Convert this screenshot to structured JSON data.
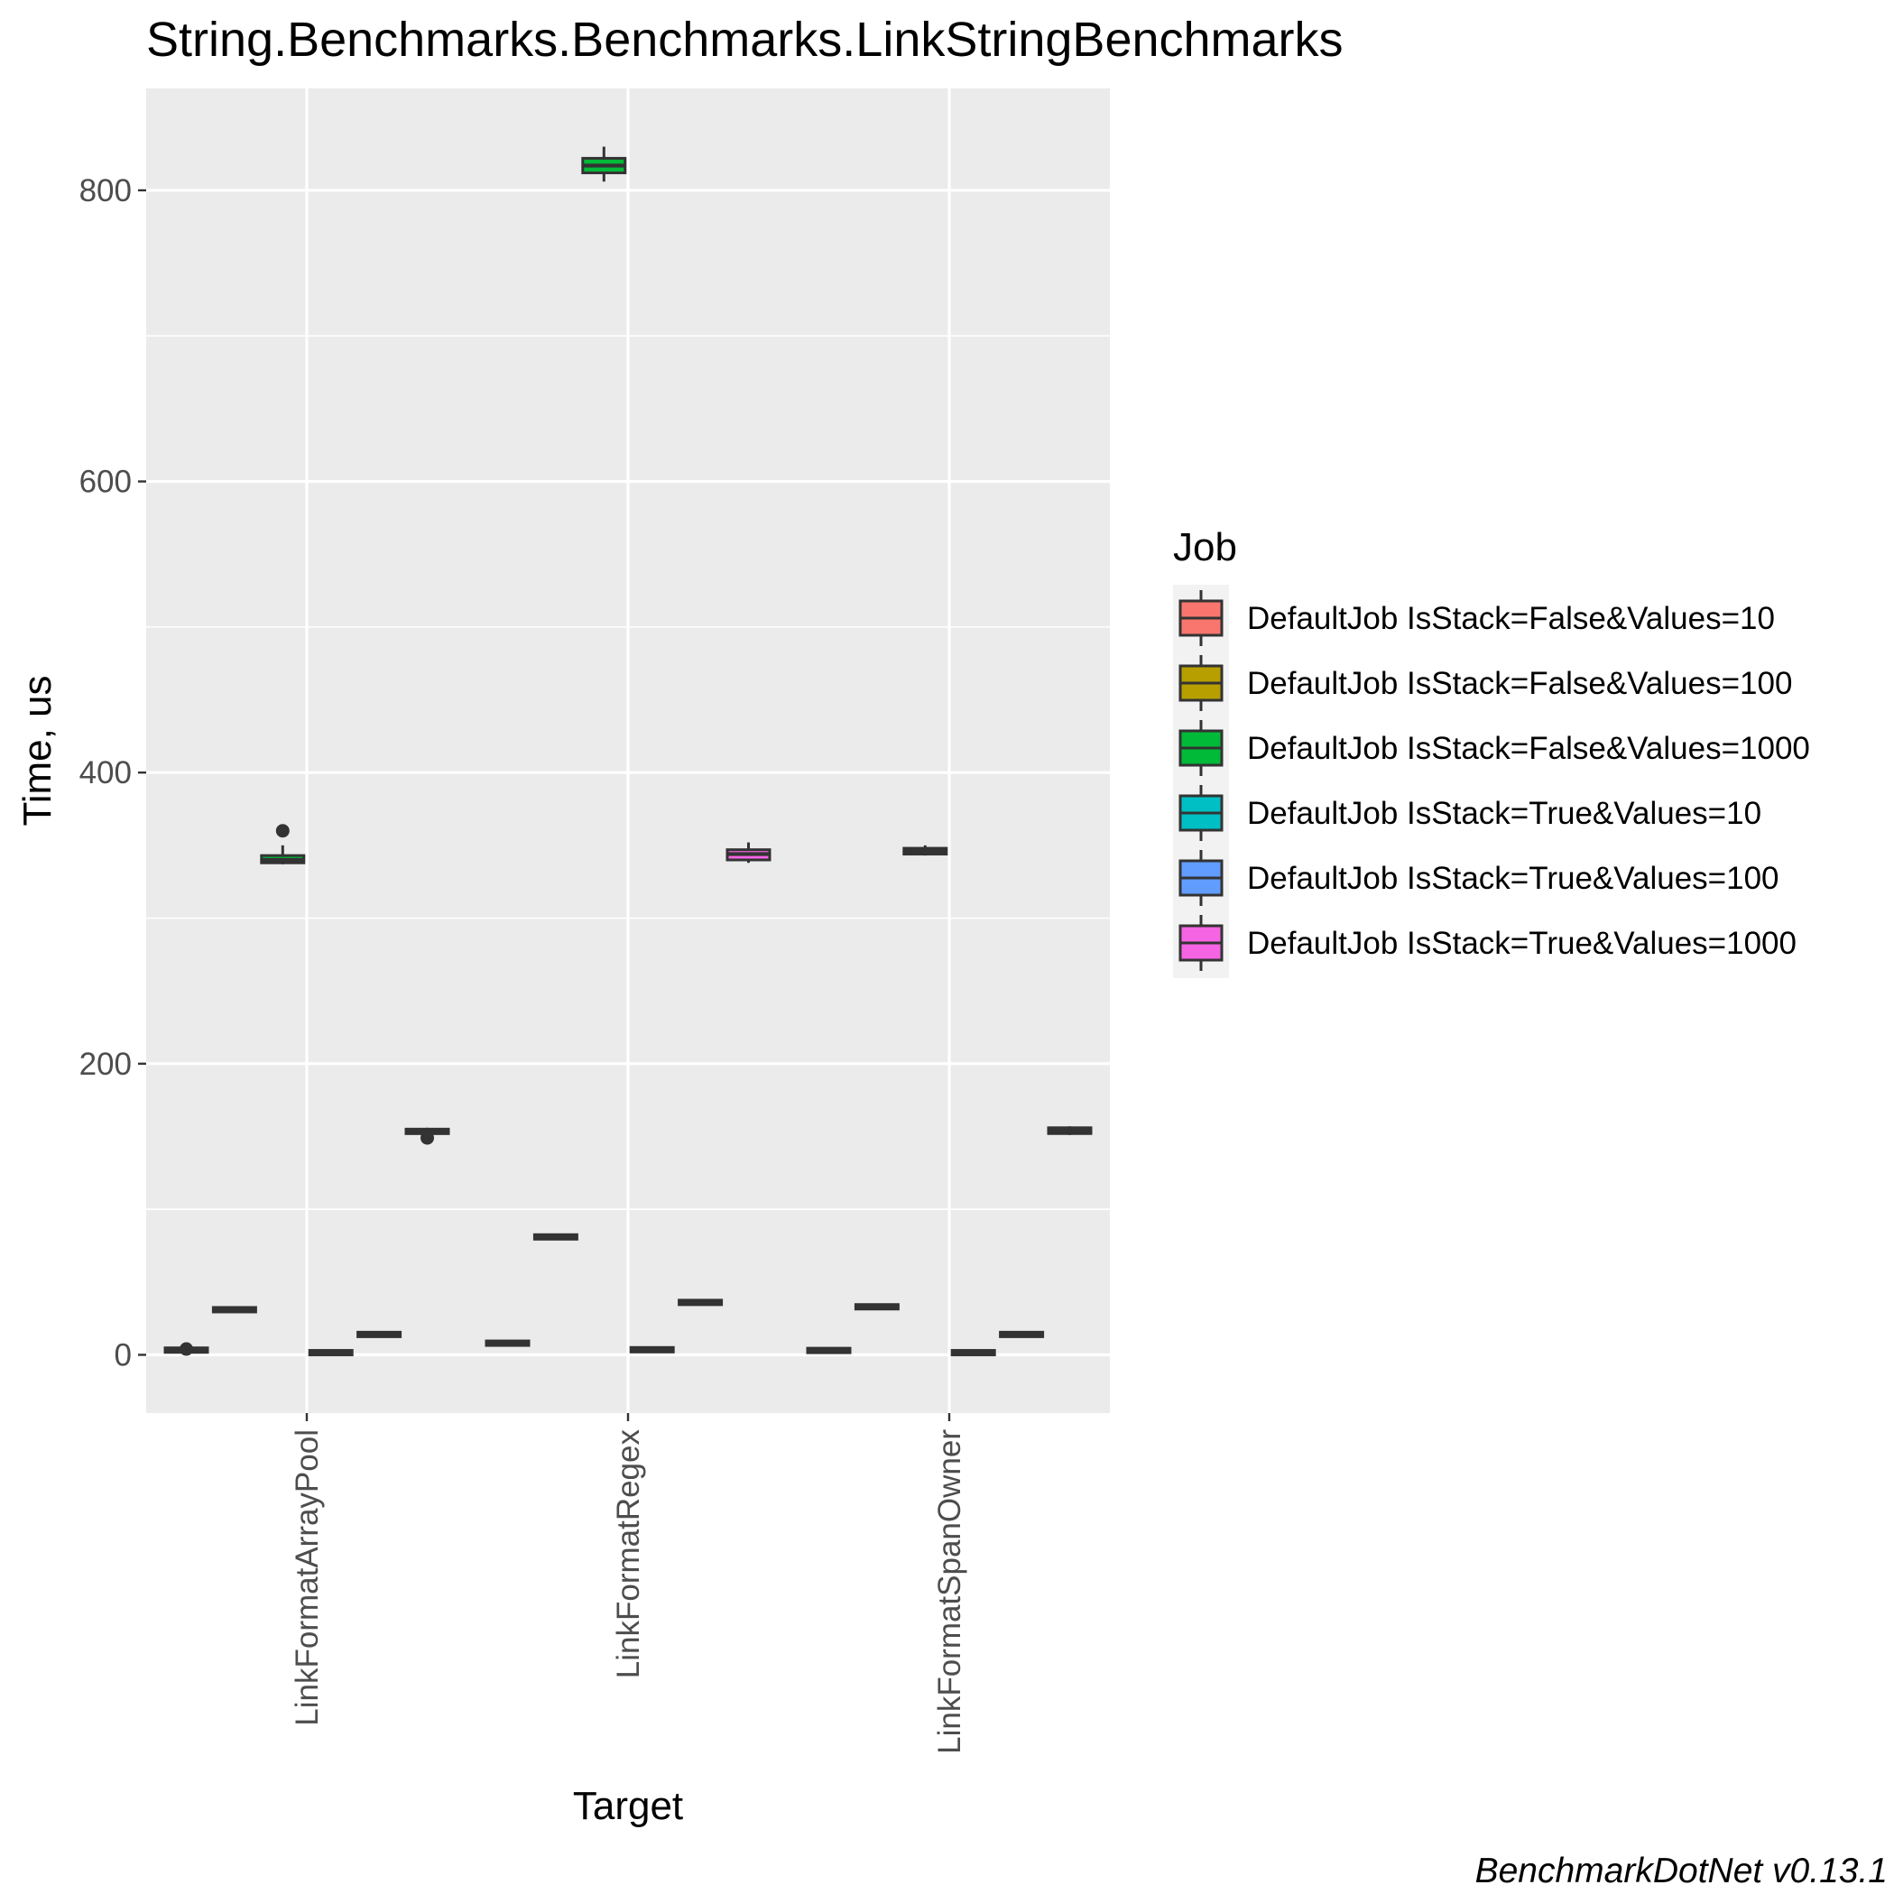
{
  "chart_data": {
    "type": "boxplot",
    "title": "String.Benchmarks.Benchmarks.LinkStringBenchmarks",
    "xlabel": "Target",
    "ylabel": "Time, us",
    "caption": "BenchmarkDotNet v0.13.1",
    "categories": [
      "LinkFormatArrayPool",
      "LinkFormatRegex",
      "LinkFormatSpanOwner"
    ],
    "ylim": [
      -40,
      870
    ],
    "yticks": [
      0,
      200,
      400,
      600,
      800
    ],
    "grid": true,
    "legend": {
      "title": "Job",
      "position": "right"
    },
    "series": [
      {
        "name": "DefaultJob IsStack=False&Values=10",
        "color": "#F8766D",
        "boxes": [
          {
            "min": 2,
            "q1": 2.5,
            "median": 3,
            "q3": 4,
            "max": 5,
            "outliers": [
              4
            ]
          },
          {
            "min": 7,
            "q1": 7.5,
            "median": 8,
            "q3": 8.5,
            "max": 9,
            "outliers": []
          },
          {
            "min": 2,
            "q1": 2.5,
            "median": 3,
            "q3": 3.5,
            "max": 4,
            "outliers": []
          }
        ]
      },
      {
        "name": "DefaultJob IsStack=False&Values=100",
        "color": "#B79F00",
        "boxes": [
          {
            "min": 29,
            "q1": 30,
            "median": 31,
            "q3": 32,
            "max": 33,
            "outliers": []
          },
          {
            "min": 79,
            "q1": 80,
            "median": 81,
            "q3": 82,
            "max": 83,
            "outliers": []
          },
          {
            "min": 31,
            "q1": 32,
            "median": 33,
            "q3": 34,
            "max": 35,
            "outliers": []
          }
        ]
      },
      {
        "name": "DefaultJob IsStack=False&Values=1000",
        "color": "#00BA38",
        "boxes": [
          {
            "min": 337,
            "q1": 338,
            "median": 340,
            "q3": 343,
            "max": 350,
            "outliers": [
              360
            ]
          },
          {
            "min": 806,
            "q1": 812,
            "median": 817,
            "q3": 822,
            "max": 830,
            "outliers": []
          },
          {
            "min": 343,
            "q1": 344,
            "median": 346,
            "q3": 348,
            "max": 350,
            "outliers": []
          }
        ]
      },
      {
        "name": "DefaultJob IsStack=True&Values=10",
        "color": "#00BFC4",
        "boxes": [
          {
            "min": 0.5,
            "q1": 1,
            "median": 1.5,
            "q3": 2,
            "max": 2.5,
            "outliers": []
          },
          {
            "min": 2,
            "q1": 3,
            "median": 3.5,
            "q3": 4,
            "max": 5,
            "outliers": []
          },
          {
            "min": 0.5,
            "q1": 1,
            "median": 1.5,
            "q3": 2,
            "max": 2.5,
            "outliers": []
          }
        ]
      },
      {
        "name": "DefaultJob IsStack=True&Values=100",
        "color": "#619CFF",
        "boxes": [
          {
            "min": 12,
            "q1": 13,
            "median": 14,
            "q3": 15,
            "max": 16,
            "outliers": []
          },
          {
            "min": 34,
            "q1": 35,
            "median": 36,
            "q3": 37,
            "max": 38,
            "outliers": []
          },
          {
            "min": 12,
            "q1": 13,
            "median": 14,
            "q3": 15,
            "max": 16,
            "outliers": []
          }
        ]
      },
      {
        "name": "DefaultJob IsStack=True&Values=1000",
        "color": "#F564E3",
        "boxes": [
          {
            "min": 151,
            "q1": 152,
            "median": 153,
            "q3": 155,
            "max": 156,
            "outliers": [
              149
            ]
          },
          {
            "min": 338,
            "q1": 340,
            "median": 344,
            "q3": 347,
            "max": 352,
            "outliers": []
          },
          {
            "min": 151,
            "q1": 152,
            "median": 154,
            "q3": 156,
            "max": 157,
            "outliers": []
          }
        ]
      }
    ]
  }
}
